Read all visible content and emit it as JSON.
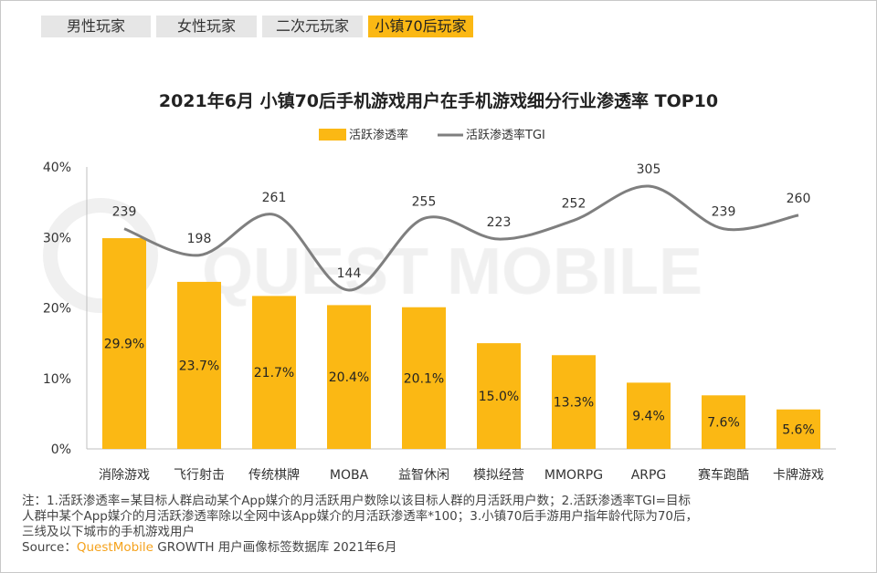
{
  "tabs": [
    {
      "label": "男性玩家",
      "active": false
    },
    {
      "label": "女性玩家",
      "active": false
    },
    {
      "label": "二次元玩家",
      "active": false
    },
    {
      "label": "小镇70后玩家",
      "active": true
    }
  ],
  "watermark": "QUEST MOBILE",
  "chart_data": {
    "type": "bar",
    "title": "2021年6月 小镇70后手机游戏用户在手机游戏细分行业渗透率 TOP10",
    "categories": [
      "消除游戏",
      "飞行射击",
      "传统棋牌",
      "MOBA",
      "益智休闲",
      "模拟经营",
      "MMORPG",
      "ARPG",
      "赛车跑酷",
      "卡牌游戏"
    ],
    "series": [
      {
        "name": "活跃渗透率",
        "type": "bar",
        "axis": "left",
        "values": [
          29.9,
          23.7,
          21.7,
          20.4,
          20.1,
          15.0,
          13.3,
          9.4,
          7.6,
          5.6
        ],
        "labels": [
          "29.9%",
          "23.7%",
          "21.7%",
          "20.4%",
          "20.1%",
          "15.0%",
          "13.3%",
          "9.4%",
          "7.6%",
          "5.6%"
        ],
        "color": "#fbb814"
      },
      {
        "name": "活跃渗透率TGI",
        "type": "line",
        "axis": "right-hidden",
        "values": [
          239,
          198,
          261,
          144,
          255,
          223,
          252,
          305,
          239,
          260
        ],
        "color": "#7f7f7f"
      }
    ],
    "ylim": [
      0,
      40
    ],
    "yticks": [
      "0%",
      "10%",
      "20%",
      "30%",
      "40%"
    ],
    "legend": "top-center",
    "grid": false
  },
  "notes": {
    "line1": "注：1.活跃渗透率=某目标人群启动某个App媒介的月活跃用户数除以该目标人群的月活跃用户数；2.活跃渗透率TGI=目标",
    "line2": "人群中某个App媒介的月活跃渗透率除以全网中该App媒介的月活跃渗透率*100；3.小镇70后手游用户指年龄代际为70后，",
    "line3": "三线及以下城市的手机游戏用户",
    "source_prefix": "Source：",
    "source_brand": "QuestMobile",
    "source_suffix": " GROWTH 用户画像标签数据库 2021年6月"
  }
}
